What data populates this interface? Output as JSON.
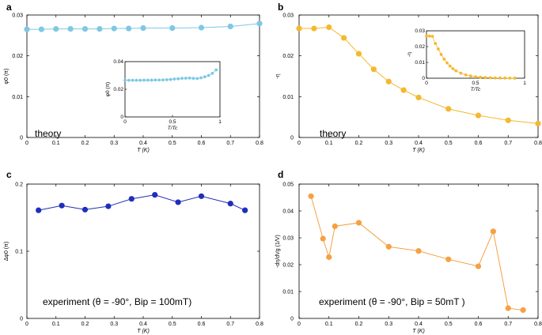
{
  "chart_data": [
    {
      "id": "a",
      "type": "line",
      "panel_label": "a",
      "xlabel": "T (K)",
      "ylabel": "φ0 (π)",
      "xlim": [
        0,
        0.8
      ],
      "ylim": [
        0,
        0.03
      ],
      "xticks": [
        "0",
        "0.1",
        "0.2",
        "0.3",
        "0.4",
        "0.5",
        "0.6",
        "0.7",
        "0.8"
      ],
      "yticks": [
        "0",
        "0.01",
        "0.02",
        "0.03"
      ],
      "annotation": "theory",
      "color": "#7ec8e3",
      "series": [
        {
          "name": "theory",
          "x": [
            0,
            0.05,
            0.1,
            0.15,
            0.2,
            0.25,
            0.3,
            0.35,
            0.4,
            0.5,
            0.6,
            0.7,
            0.8
          ],
          "y": [
            0.0265,
            0.0265,
            0.0266,
            0.0266,
            0.0266,
            0.0266,
            0.0267,
            0.0267,
            0.0268,
            0.0268,
            0.0269,
            0.0272,
            0.0279
          ]
        }
      ],
      "inset": {
        "xlabel": "T/Tc",
        "ylabel": "φ0 (π)",
        "xlim": [
          0,
          1
        ],
        "ylim": [
          0,
          0.04
        ],
        "xticks": [
          "0",
          "0.5",
          "1"
        ],
        "yticks": [
          "0",
          "0.02",
          "0.04"
        ],
        "x": [
          0,
          0.04,
          0.08,
          0.12,
          0.16,
          0.2,
          0.24,
          0.28,
          0.32,
          0.36,
          0.4,
          0.44,
          0.48,
          0.52,
          0.56,
          0.6,
          0.64,
          0.68,
          0.72,
          0.76,
          0.8,
          0.84,
          0.88,
          0.92,
          0.96
        ],
        "y": [
          0.0265,
          0.0265,
          0.0265,
          0.0265,
          0.0265,
          0.0266,
          0.0266,
          0.0266,
          0.0267,
          0.0267,
          0.0268,
          0.0269,
          0.0271,
          0.0274,
          0.0276,
          0.0279,
          0.028,
          0.0281,
          0.0279,
          0.0278,
          0.0283,
          0.029,
          0.03,
          0.0315,
          0.034
        ]
      }
    },
    {
      "id": "b",
      "type": "line",
      "panel_label": "b",
      "xlabel": "T (K)",
      "ylabel": "-η",
      "xlim": [
        0,
        0.8
      ],
      "ylim": [
        0,
        0.03
      ],
      "xticks": [
        "0",
        "0.1",
        "0.2",
        "0.3",
        "0.4",
        "0.5",
        "0.6",
        "0.7",
        "0.8"
      ],
      "yticks": [
        "0",
        "0.01",
        "0.02",
        "0.03"
      ],
      "annotation": "theory",
      "color": "#f5b82e",
      "series": [
        {
          "name": "theory",
          "x": [
            0,
            0.05,
            0.1,
            0.15,
            0.2,
            0.25,
            0.3,
            0.35,
            0.4,
            0.5,
            0.6,
            0.7,
            0.8
          ],
          "y": [
            0.0267,
            0.0267,
            0.027,
            0.0244,
            0.0205,
            0.0167,
            0.0137,
            0.0116,
            0.0098,
            0.007,
            0.0054,
            0.0042,
            0.0034
          ]
        }
      ],
      "inset": {
        "xlabel": "T/Tc",
        "ylabel": "-η",
        "xlim": [
          0,
          1
        ],
        "ylim": [
          0,
          0.03
        ],
        "xticks": [
          "0",
          "0.5",
          "1"
        ],
        "yticks": [
          "0",
          "0.01",
          "0.02",
          "0.03"
        ],
        "x": [
          0,
          0.03,
          0.06,
          0.09,
          0.12,
          0.15,
          0.18,
          0.21,
          0.24,
          0.27,
          0.3,
          0.35,
          0.4,
          0.45,
          0.5,
          0.55,
          0.6,
          0.65,
          0.7,
          0.75,
          0.8,
          0.85,
          0.9
        ],
        "y": [
          0.0267,
          0.0267,
          0.0265,
          0.022,
          0.0185,
          0.015,
          0.0121,
          0.0097,
          0.0077,
          0.006,
          0.0047,
          0.0032,
          0.0021,
          0.0014,
          0.0009,
          0.0006,
          0.0004,
          0.0003,
          0.0002,
          0.00015,
          0.0001,
          5e-05,
          2e-05
        ]
      }
    },
    {
      "id": "c",
      "type": "line",
      "panel_label": "c",
      "xlabel": "T (K)",
      "ylabel": "Δφ0 (π)",
      "xlim": [
        0,
        0.8
      ],
      "ylim": [
        0,
        0.2
      ],
      "xticks": [
        "0",
        "0.1",
        "0.2",
        "0.3",
        "0.4",
        "0.5",
        "0.6",
        "0.7",
        "0.8"
      ],
      "yticks": [
        "0",
        "0.1",
        "0.2"
      ],
      "annotation": "experiment (θ = -90°, Bip = 100mT)",
      "color": "#1f2fb8",
      "series": [
        {
          "name": "experiment",
          "x": [
            0.04,
            0.12,
            0.2,
            0.28,
            0.36,
            0.44,
            0.52,
            0.6,
            0.7,
            0.75
          ],
          "y": [
            0.161,
            0.168,
            0.162,
            0.167,
            0.178,
            0.184,
            0.173,
            0.182,
            0.171,
            0.161
          ]
        }
      ]
    },
    {
      "id": "d",
      "type": "line",
      "panel_label": "d",
      "xlabel": "T (K)",
      "ylabel": "-dη/dVg (1/V)",
      "xlim": [
        0,
        0.8
      ],
      "ylim": [
        0,
        0.05
      ],
      "xticks": [
        "0",
        "0.1",
        "0.2",
        "0.3",
        "0.4",
        "0.5",
        "0.6",
        "0.7",
        "0.8"
      ],
      "yticks": [
        "0",
        "0.01",
        "0.02",
        "0.03",
        "0.04",
        "0.05"
      ],
      "annotation": "experiment (θ = -90°, Bip = 50mT )",
      "color": "#f5a143",
      "series": [
        {
          "name": "experiment",
          "x": [
            0.04,
            0.08,
            0.1,
            0.12,
            0.2,
            0.3,
            0.4,
            0.5,
            0.6,
            0.65,
            0.7,
            0.75
          ],
          "y": [
            0.0455,
            0.0297,
            0.0228,
            0.0343,
            0.0356,
            0.0267,
            0.0251,
            0.022,
            0.0194,
            0.0324,
            0.0038,
            0.0031
          ]
        }
      ]
    }
  ]
}
